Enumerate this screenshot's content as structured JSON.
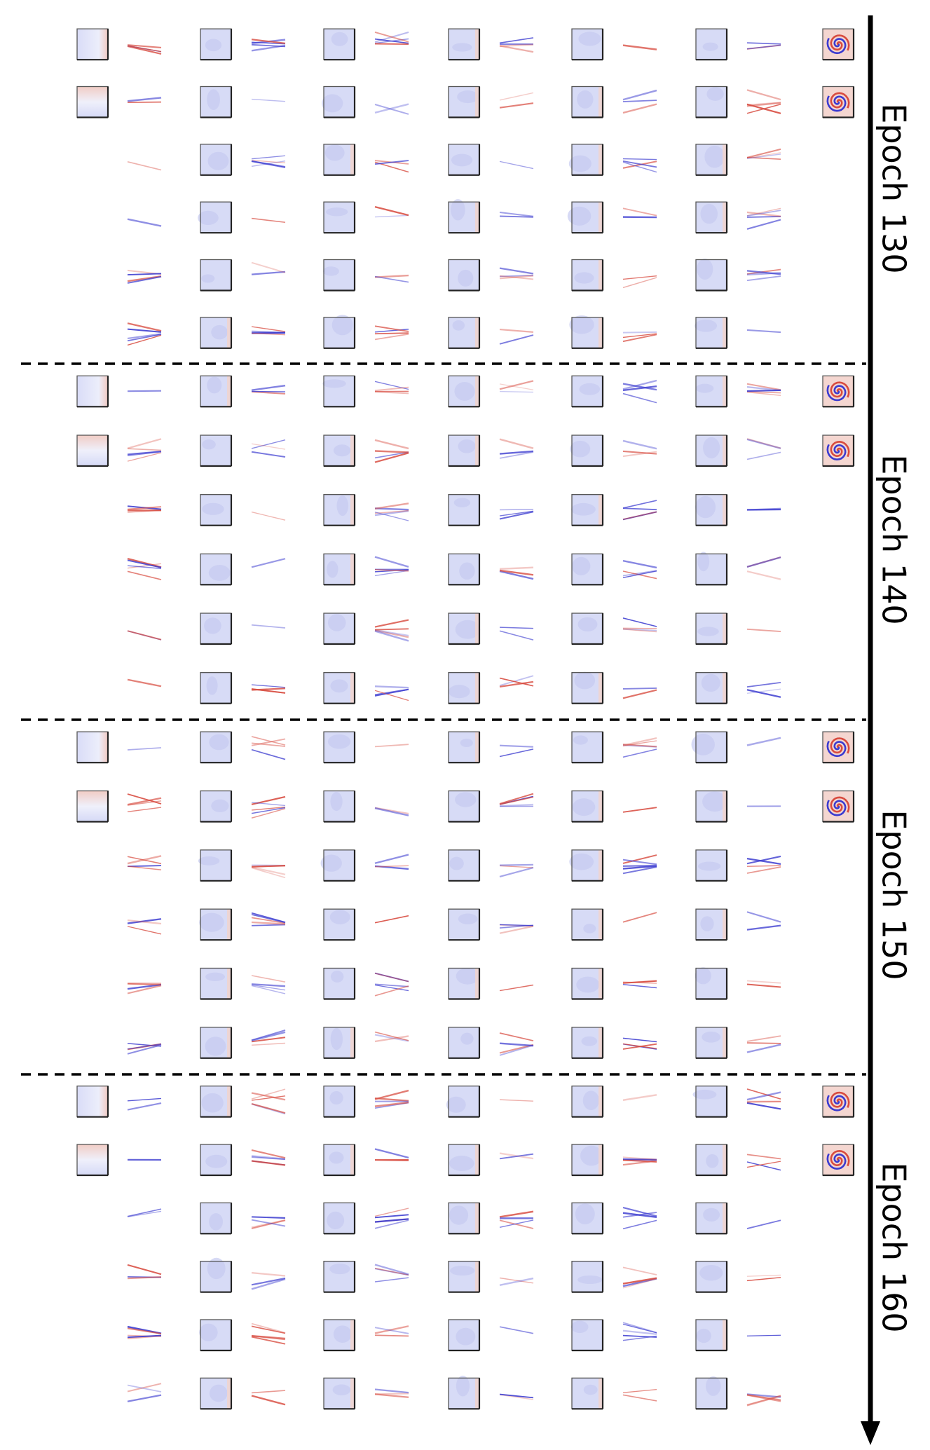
{
  "figure": {
    "epochs": [
      {
        "label": "Epoch 130"
      },
      {
        "label": "Epoch 140"
      },
      {
        "label": "Epoch 150"
      },
      {
        "label": "Epoch 160"
      }
    ],
    "rows_per_epoch": 6,
    "layers": [
      {
        "type": "input",
        "neurons": 2
      },
      {
        "type": "weights"
      },
      {
        "type": "hidden",
        "neurons": 6
      },
      {
        "type": "weights"
      },
      {
        "type": "hidden",
        "neurons": 6
      },
      {
        "type": "weights"
      },
      {
        "type": "hidden",
        "neurons": 6
      },
      {
        "type": "weights"
      },
      {
        "type": "hidden",
        "neurons": 6
      },
      {
        "type": "weights"
      },
      {
        "type": "hidden",
        "neurons": 6
      },
      {
        "type": "weights"
      },
      {
        "type": "output",
        "neurons": 2
      }
    ],
    "timeline_direction": "down",
    "separator_style": "dashed",
    "colors": {
      "positive": "#d84b3f",
      "negative": "#3b3bd0",
      "tile_fill": "#d7dbf6",
      "tile_warm": "#f3d3cc",
      "axis": "#000000",
      "separator": "#000000"
    },
    "icons": {
      "output_glyph": "spiral-icon"
    }
  }
}
